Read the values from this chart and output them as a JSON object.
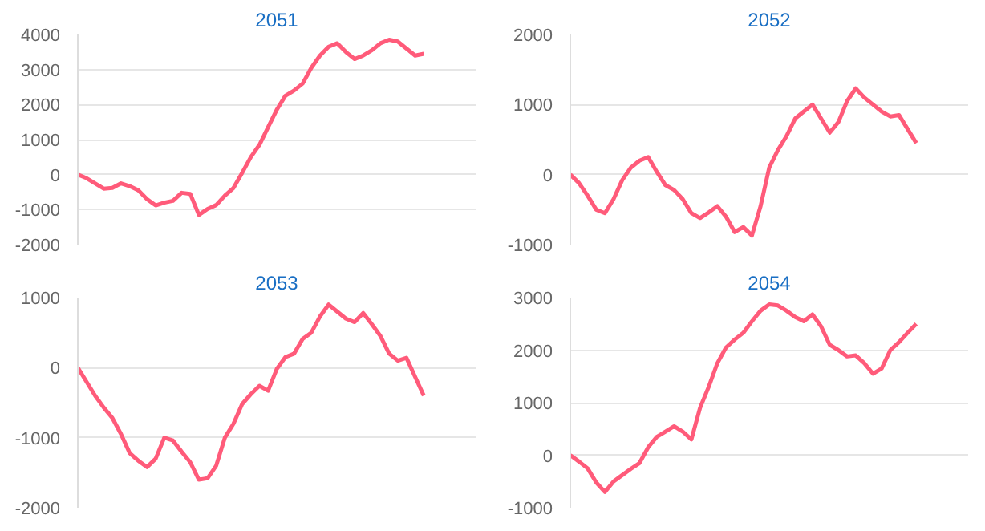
{
  "chart_data": [
    {
      "type": "line",
      "title": "2051",
      "categories": [
        null,
        null,
        null,
        null,
        null,
        null,
        null,
        null,
        null,
        null,
        null,
        null,
        null,
        null,
        null,
        null,
        null,
        null,
        null,
        null,
        null,
        null,
        null,
        null,
        null,
        null,
        null,
        null,
        null,
        null,
        null,
        null,
        null,
        null,
        null,
        null,
        null,
        null,
        null,
        null,
        null,
        null,
        null,
        null,
        null,
        null,
        null
      ],
      "series": [
        {
          "color": "#ff5b7a",
          "values": [
            0,
            -100,
            -250,
            -400,
            -380,
            -250,
            -330,
            -450,
            -700,
            -880,
            -800,
            -750,
            -520,
            -550,
            -1150,
            -980,
            -870,
            -600,
            -380,
            50,
            500,
            850,
            1350,
            1850,
            2250,
            2400,
            2600,
            3050,
            3400,
            3650,
            3750,
            3500,
            3300,
            3400,
            3550,
            3750,
            3850,
            3800,
            3600,
            3400,
            3450,
            null,
            null,
            null,
            null,
            null,
            null
          ]
        }
      ],
      "ylim": [
        -2000,
        4000
      ],
      "yticks": [
        -2000,
        -1000,
        0,
        1000,
        2000,
        3000,
        4000
      ],
      "grid": "y",
      "tick_labels": "y"
    },
    {
      "type": "line",
      "title": "2052",
      "categories": [
        null,
        null,
        null,
        null,
        null,
        null,
        null,
        null,
        null,
        null,
        null,
        null,
        null,
        null,
        null,
        null,
        null,
        null,
        null,
        null,
        null,
        null,
        null,
        null,
        null,
        null,
        null,
        null,
        null,
        null,
        null,
        null,
        null,
        null,
        null,
        null,
        null,
        null,
        null,
        null,
        null,
        null,
        null,
        null,
        null,
        null,
        null
      ],
      "series": [
        {
          "color": "#ff5b7a",
          "values": [
            0,
            -120,
            -300,
            -500,
            -550,
            -350,
            -80,
            100,
            200,
            250,
            40,
            -150,
            -220,
            -350,
            -550,
            -620,
            -540,
            -450,
            -600,
            -820,
            -750,
            -870,
            -450,
            100,
            350,
            550,
            800,
            900,
            1000,
            800,
            600,
            750,
            1050,
            1230,
            1100,
            1000,
            900,
            830,
            850,
            650,
            450,
            null,
            null,
            null,
            null,
            null,
            null
          ]
        }
      ],
      "ylim": [
        -1000,
        2000
      ],
      "yticks": [
        -1000,
        0,
        1000,
        2000
      ],
      "grid": "y",
      "tick_labels": "y"
    },
    {
      "type": "line",
      "title": "2053",
      "categories": [
        null,
        null,
        null,
        null,
        null,
        null,
        null,
        null,
        null,
        null,
        null,
        null,
        null,
        null,
        null,
        null,
        null,
        null,
        null,
        null,
        null,
        null,
        null,
        null,
        null,
        null,
        null,
        null,
        null,
        null,
        null,
        null,
        null,
        null,
        null,
        null,
        null,
        null,
        null,
        null,
        null,
        null,
        null,
        null,
        null,
        null,
        null
      ],
      "series": [
        {
          "color": "#ff5b7a",
          "values": [
            0,
            -200,
            -400,
            -570,
            -720,
            -950,
            -1220,
            -1330,
            -1420,
            -1300,
            -1000,
            -1040,
            -1200,
            -1350,
            -1600,
            -1580,
            -1400,
            -1000,
            -800,
            -520,
            -380,
            -260,
            -330,
            -20,
            150,
            200,
            410,
            500,
            730,
            900,
            800,
            700,
            650,
            780,
            620,
            450,
            200,
            100,
            140,
            -130,
            -400,
            null,
            null,
            null,
            null,
            null,
            null
          ]
        }
      ],
      "ylim": [
        -2000,
        1000
      ],
      "yticks": [
        -2000,
        -1000,
        0,
        1000
      ],
      "grid": "y",
      "tick_labels": "y"
    },
    {
      "type": "line",
      "title": "2054",
      "categories": [
        null,
        null,
        null,
        null,
        null,
        null,
        null,
        null,
        null,
        null,
        null,
        null,
        null,
        null,
        null,
        null,
        null,
        null,
        null,
        null,
        null,
        null,
        null,
        null,
        null,
        null,
        null,
        null,
        null,
        null,
        null,
        null,
        null,
        null,
        null,
        null,
        null,
        null,
        null,
        null,
        null,
        null,
        null,
        null,
        null,
        null,
        null
      ],
      "series": [
        {
          "color": "#ff5b7a",
          "values": [
            0,
            -120,
            -250,
            -520,
            -700,
            -500,
            -380,
            -260,
            -150,
            150,
            350,
            450,
            550,
            450,
            300,
            900,
            1300,
            1750,
            2050,
            2200,
            2330,
            2550,
            2750,
            2870,
            2850,
            2750,
            2630,
            2550,
            2680,
            2450,
            2100,
            2000,
            1880,
            1900,
            1750,
            1550,
            1650,
            2000,
            2150,
            2330,
            2500,
            null,
            null,
            null,
            null,
            null,
            null
          ]
        }
      ],
      "ylim": [
        -1000,
        3000
      ],
      "yticks": [
        -1000,
        0,
        1000,
        2000,
        3000
      ],
      "grid": "y",
      "tick_labels": "y"
    }
  ]
}
